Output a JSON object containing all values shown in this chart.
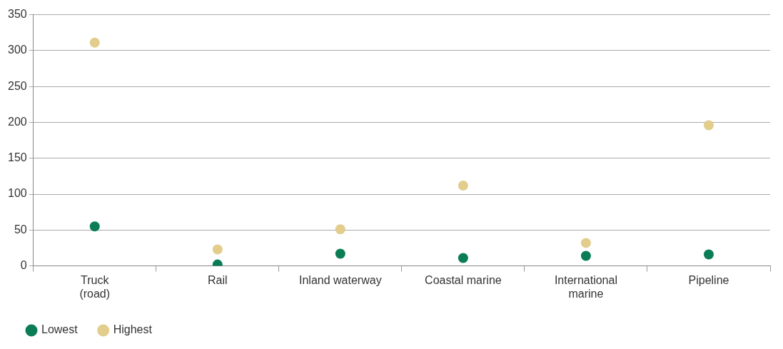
{
  "chart_data": {
    "type": "scatter",
    "categories": [
      "Truck\n(road)",
      "Rail",
      "Inland waterway",
      "Coastal marine",
      "International\nmarine",
      "Pipeline"
    ],
    "series": [
      {
        "name": "Lowest",
        "color": "#0b7d55",
        "values": [
          55,
          2,
          17,
          11,
          14,
          16
        ]
      },
      {
        "name": "Highest",
        "color": "#e2cd8c",
        "values": [
          311,
          23,
          51,
          112,
          32,
          196
        ]
      }
    ],
    "ylim": [
      0,
      350
    ],
    "yticks": [
      0,
      50,
      100,
      150,
      200,
      250,
      300,
      350
    ],
    "grid": "y",
    "legend": "bottom left",
    "marker": "circle"
  }
}
